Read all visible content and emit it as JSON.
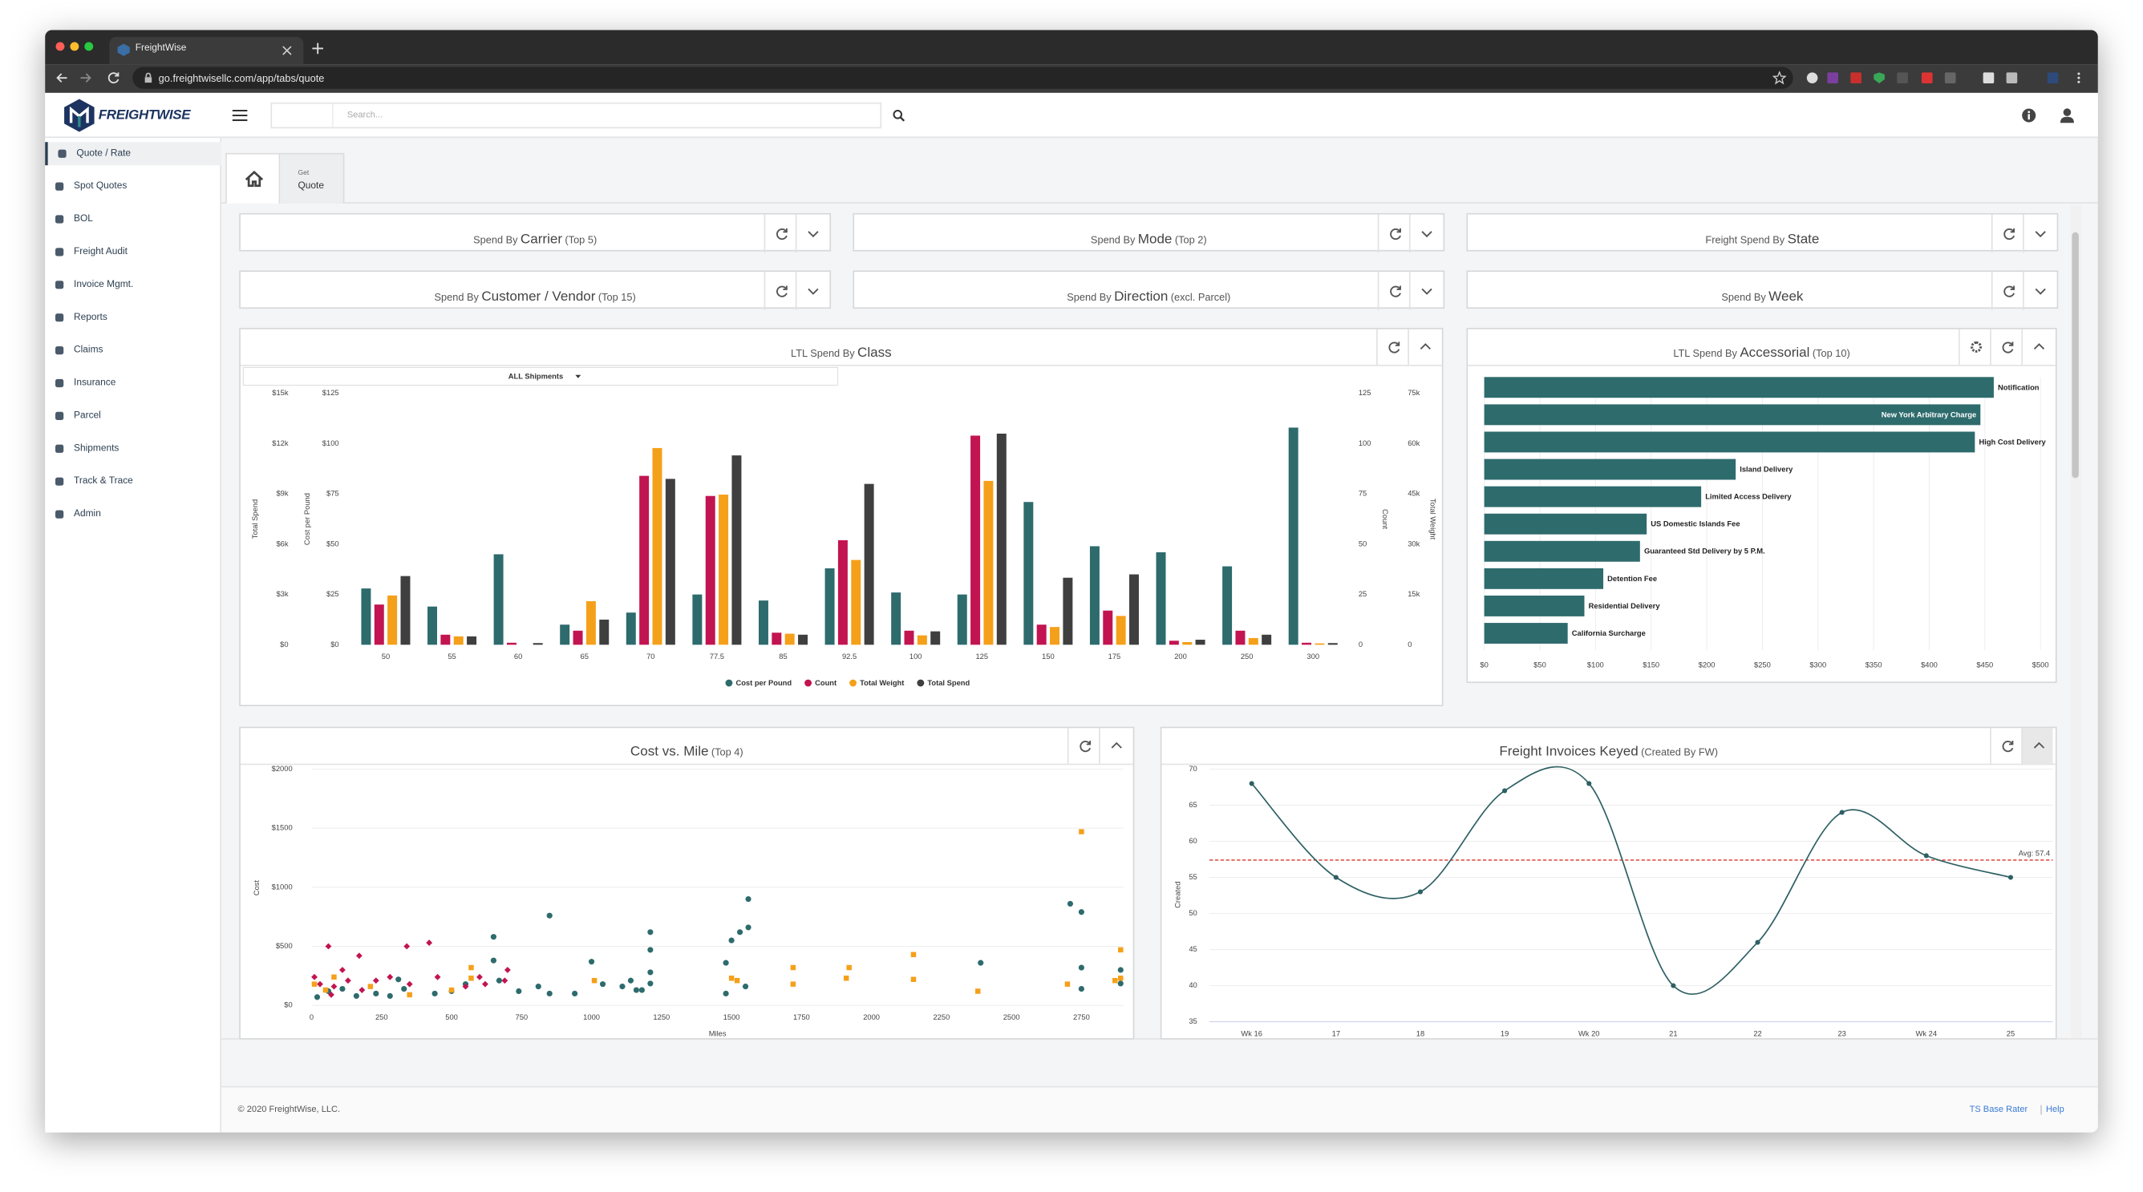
{
  "browser": {
    "tab_title": "FreightWise",
    "url": "go.freightwisellc.com/app/tabs/quote"
  },
  "header": {
    "logo": "FREIGHTWISE",
    "search_placeholder": "Search..."
  },
  "sidebar": [
    "Quote / Rate",
    "Spot Quotes",
    "BOL",
    "Freight Audit",
    "Invoice Mgmt.",
    "Reports",
    "Claims",
    "Insurance",
    "Parcel",
    "Shipments",
    "Track & Trace",
    "Admin"
  ],
  "tabs": {
    "small": "Get",
    "label": "Quote"
  },
  "panels": [
    {
      "pre": "Spend By",
      "main": "Carrier",
      "post": "(Top 5)"
    },
    {
      "pre": "Spend By",
      "main": "Mode",
      "post": "(Top 2)"
    },
    {
      "pre": "Freight Spend By",
      "main": "State"
    },
    {
      "pre": "Spend By",
      "main": "Customer / Vendor",
      "post": "(Top 15)"
    },
    {
      "pre": "Spend By",
      "main": "Direction",
      "post": "(excl. Parcel)"
    },
    {
      "pre": "Spend By",
      "main": "Week"
    }
  ],
  "chart_data": [
    {
      "type": "grouped-bar",
      "title_prefix": "LTL Spend By",
      "title": "Class",
      "filter": "ALL Shipments",
      "categories": [
        "50",
        "55",
        "60",
        "65",
        "70",
        "77.5",
        "85",
        "92.5",
        "100",
        "125",
        "150",
        "175",
        "200",
        "250",
        "300"
      ],
      "axes": [
        {
          "label": "Total Spend",
          "lim": [
            0,
            15000
          ],
          "ticks": [
            {
              "value": 0,
              "label": "$0"
            },
            {
              "value": 3000,
              "label": "$3k"
            },
            {
              "value": 6000,
              "label": "$6k"
            },
            {
              "value": 9000,
              "label": "$9k"
            },
            {
              "value": 12000,
              "label": "$12k"
            },
            {
              "value": 15000,
              "label": "$15k"
            }
          ]
        },
        {
          "label": "Cost per Pound",
          "lim": [
            0,
            125
          ],
          "ticks": [
            {
              "value": 0,
              "label": "$0"
            },
            {
              "value": 25,
              "label": "$25"
            },
            {
              "value": 50,
              "label": "$50"
            },
            {
              "value": 75,
              "label": "$75"
            },
            {
              "value": 100,
              "label": "$100"
            },
            {
              "value": 125,
              "label": "$125"
            }
          ]
        },
        {
          "label": "Count",
          "lim": [
            0,
            125
          ],
          "ticks": [
            0,
            25,
            50,
            75,
            100,
            125
          ]
        },
        {
          "label": "Total Weight",
          "lim": [
            0,
            75000
          ],
          "ticks": [
            0,
            {
              "value": 15000,
              "label": "15k"
            },
            {
              "value": 30000,
              "label": "30k"
            },
            {
              "value": 45000,
              "label": "45k"
            },
            {
              "value": 60000,
              "label": "60k"
            },
            {
              "value": 75000,
              "label": "75k"
            }
          ]
        }
      ],
      "series": [
        {
          "name": "Cost per Pound",
          "color": "#2e6b6d",
          "axis": 1,
          "values": [
            28,
            19,
            45,
            10,
            16,
            25,
            22,
            38,
            26,
            25,
            71,
            49,
            46,
            39,
            108
          ]
        },
        {
          "name": "Count",
          "color": "#c21451",
          "axis": 2,
          "values": [
            20,
            5,
            1,
            7,
            84,
            74,
            6,
            52,
            7,
            104,
            10,
            17,
            2,
            7,
            1
          ]
        },
        {
          "name": "Total Weight",
          "color": "#f5a01a",
          "axis": 3,
          "values": [
            14700,
            2500,
            0,
            13000,
            58700,
            44800,
            3300,
            25300,
            2800,
            48900,
            5300,
            8600,
            800,
            2000,
            400
          ]
        },
        {
          "name": "Total Spend",
          "color": "#3f3f3f",
          "axis": 0,
          "values": [
            4100,
            500,
            100,
            1500,
            9900,
            11300,
            600,
            9600,
            800,
            12600,
            4000,
            4200,
            300,
            600,
            100
          ]
        }
      ],
      "legend": "bottom"
    },
    {
      "type": "hbar",
      "title_prefix": "LTL Spend By",
      "title": "Accessorial",
      "title_note": "(Top 10)",
      "categories": [
        "Notification",
        "New York Arbitrary Charge",
        "High Cost Delivery",
        "Island Delivery",
        "Limited Access Delivery",
        "US Domestic Islands Fee",
        "Guaranteed Std Delivery by 5 P.M.",
        "Detention Fee",
        "Residential Delivery",
        "California Surcharge"
      ],
      "values": [
        458,
        446,
        441,
        226,
        195,
        146,
        140,
        107,
        90,
        75
      ],
      "color": "#2e6b6d",
      "xlim": [
        0,
        500
      ],
      "xticks": [
        {
          "value": 0,
          "label": "$0"
        },
        {
          "value": 50,
          "label": "$50"
        },
        {
          "value": 100,
          "label": "$100"
        },
        {
          "value": 150,
          "label": "$150"
        },
        {
          "value": 200,
          "label": "$200"
        },
        {
          "value": 250,
          "label": "$250"
        },
        {
          "value": 300,
          "label": "$300"
        },
        {
          "value": 350,
          "label": "$350"
        },
        {
          "value": 400,
          "label": "$400"
        },
        {
          "value": 450,
          "label": "$450"
        },
        {
          "value": 500,
          "label": "$500"
        }
      ],
      "grid": true
    },
    {
      "type": "scatter",
      "title": "Cost vs. Mile",
      "title_note": "(Top 4)",
      "xlabel": "Miles",
      "ylabel": "Cost",
      "xlim": [
        0,
        2900
      ],
      "xticks": [
        0,
        250,
        500,
        750,
        1000,
        1250,
        1500,
        1750,
        2000,
        2250,
        2500,
        2750
      ],
      "ylim": [
        0,
        2000
      ],
      "yticks": [
        {
          "value": 0,
          "label": "$0"
        },
        {
          "value": 500,
          "label": "$500"
        },
        {
          "value": 1000,
          "label": "$1000"
        },
        {
          "value": 1500,
          "label": "$1500"
        },
        {
          "value": 2000,
          "label": "$2000"
        }
      ],
      "grid": true,
      "series": [
        {
          "color": "#2e6b6d",
          "marker": "circle",
          "x": [
            850,
            1560,
            1530,
            1500,
            1560,
            1210,
            1210,
            1210,
            1210,
            1180,
            650,
            650,
            670,
            740,
            810,
            850,
            940,
            1000,
            1040,
            1110,
            1140,
            1160,
            1480,
            1480,
            1550,
            310,
            330,
            280,
            230,
            160,
            110,
            60,
            20,
            440,
            500,
            2390,
            2710,
            2750,
            2750,
            2750,
            2890,
            2890,
            550
          ],
          "y": [
            760,
            900,
            620,
            550,
            660,
            620,
            470,
            280,
            185,
            130,
            580,
            380,
            210,
            120,
            160,
            100,
            100,
            370,
            180,
            160,
            210,
            130,
            360,
            100,
            160,
            220,
            140,
            80,
            100,
            80,
            140,
            120,
            70,
            100,
            120,
            360,
            860,
            790,
            320,
            140,
            185,
            300,
            180
          ]
        },
        {
          "color": "#c21451",
          "marker": "diamond",
          "x": [
            60,
            170,
            340,
            420,
            10,
            30,
            80,
            130,
            180,
            230,
            350,
            450,
            550,
            600,
            620,
            690,
            700,
            110,
            280,
            70
          ],
          "y": [
            500,
            420,
            500,
            530,
            240,
            180,
            160,
            210,
            130,
            210,
            180,
            240,
            160,
            240,
            180,
            210,
            300,
            300,
            240,
            90
          ]
        },
        {
          "color": "#f5a01a",
          "marker": "square",
          "x": [
            2750,
            10,
            50,
            80,
            210,
            350,
            500,
            570,
            570,
            1010,
            1500,
            1520,
            1720,
            1720,
            1920,
            1910,
            2150,
            2150,
            2380,
            2700,
            2890,
            2890,
            2870
          ],
          "y": [
            1470,
            180,
            130,
            240,
            160,
            90,
            130,
            320,
            230,
            210,
            230,
            210,
            320,
            180,
            320,
            230,
            430,
            220,
            120,
            180,
            470,
            230,
            210
          ]
        }
      ]
    },
    {
      "type": "line",
      "title": "Freight Invoices Keyed",
      "title_note": "(Created By FW)",
      "ylabel": "Created",
      "categories": [
        "Wk 16",
        "17",
        "18",
        "19",
        "Wk 20",
        "21",
        "22",
        "23",
        "Wk 24",
        "25"
      ],
      "values": [
        68,
        55,
        53,
        67,
        68,
        40,
        46,
        64,
        58,
        55
      ],
      "color": "#2e6064",
      "smooth": true,
      "ylim": [
        35,
        70
      ],
      "yticks": [
        35,
        40,
        45,
        50,
        55,
        60,
        65,
        70
      ],
      "grid": true,
      "reference": {
        "value": 57.4,
        "label": "Avg: 57.4",
        "color": "#d9322a"
      }
    }
  ],
  "footer": {
    "copyright": "© 2020 FreightWise, LLC.",
    "links": [
      "TS Base Rater",
      "Help"
    ]
  }
}
